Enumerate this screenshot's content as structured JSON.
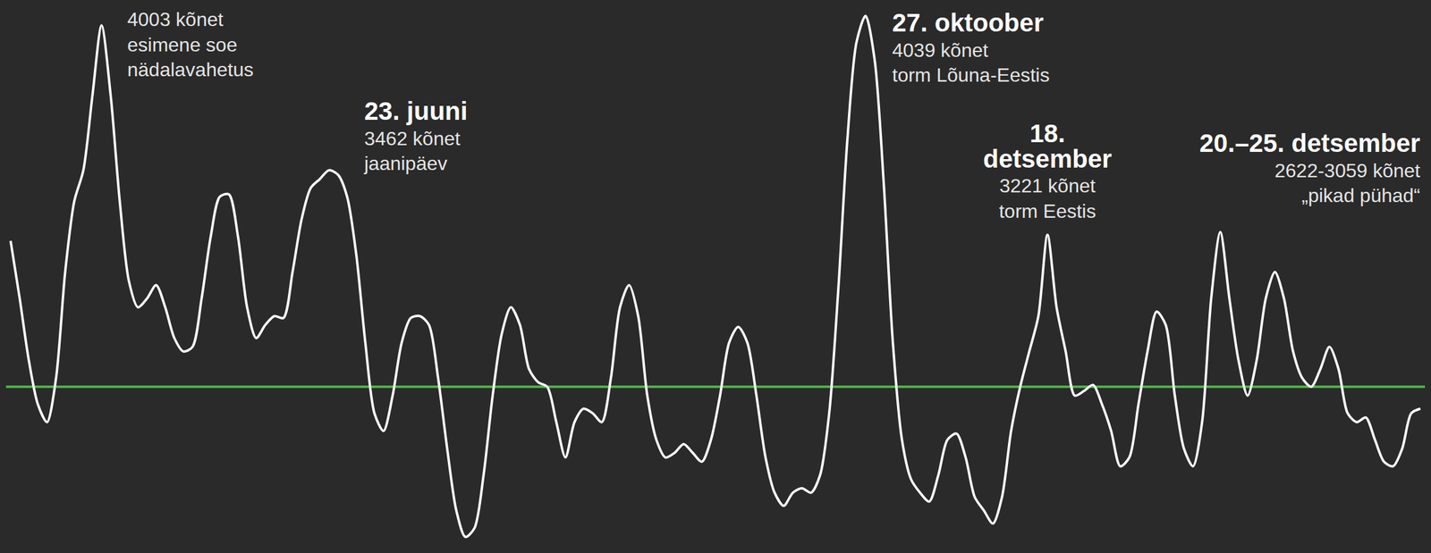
{
  "chart_data": {
    "type": "line",
    "categories": [
      null,
      null,
      null,
      null,
      null,
      null,
      null,
      null,
      null,
      null,
      null,
      null,
      null,
      null,
      null,
      null,
      null,
      null,
      null,
      null,
      null,
      null,
      null,
      null,
      null,
      null,
      null,
      null,
      null,
      null,
      null,
      null,
      null,
      null,
      null,
      null,
      null,
      null,
      null,
      null,
      null,
      null,
      null,
      null,
      null,
      null,
      null,
      null,
      null,
      null,
      null,
      null,
      null,
      null,
      null,
      null,
      null,
      null,
      null,
      null,
      null,
      null,
      null,
      null,
      null,
      null,
      null,
      null,
      null,
      null,
      null,
      null,
      null,
      null,
      null,
      null,
      null,
      null,
      null,
      null,
      null,
      null,
      null,
      null,
      null,
      null,
      null,
      null,
      null,
      null,
      null,
      null,
      null,
      null,
      null,
      null,
      null,
      null,
      null,
      null,
      null,
      null,
      null,
      null,
      null,
      null,
      null,
      null,
      null,
      null,
      null,
      null,
      null,
      null,
      null,
      null,
      null,
      null,
      null,
      null,
      null,
      null,
      null,
      null,
      null,
      null,
      null,
      null,
      null,
      null,
      null,
      null,
      null,
      null,
      null,
      null,
      null,
      null,
      null,
      null,
      null,
      null,
      null,
      null,
      null,
      null,
      null,
      null,
      null,
      null,
      null,
      null,
      null,
      null,
      null,
      null
    ],
    "values": [
      3198,
      2983,
      2752,
      2587,
      2521,
      2686,
      3082,
      3346,
      3462,
      3742,
      4003,
      3742,
      3346,
      3049,
      2950,
      2983,
      3033,
      2950,
      2835,
      2785,
      2802,
      2983,
      3214,
      3363,
      3372,
      3214,
      2950,
      2835,
      2884,
      2917,
      2910,
      3082,
      3280,
      3396,
      3429,
      3462,
      3445,
      3363,
      3148,
      2818,
      2554,
      2488,
      2620,
      2818,
      2910,
      2917,
      2884,
      2686,
      2422,
      2191,
      2092,
      2125,
      2323,
      2620,
      2851,
      2950,
      2884,
      2719,
      2670,
      2653,
      2521,
      2389,
      2521,
      2571,
      2554,
      2521,
      2686,
      2950,
      3033,
      2917,
      2620,
      2455,
      2389,
      2406,
      2439,
      2406,
      2373,
      2455,
      2620,
      2818,
      2877,
      2818,
      2620,
      2389,
      2257,
      2208,
      2257,
      2274,
      2257,
      2323,
      2554,
      3016,
      3577,
      3940,
      4039,
      3874,
      3412,
      2818,
      2455,
      2307,
      2257,
      2224,
      2323,
      2455,
      2478,
      2389,
      2241,
      2191,
      2142,
      2241,
      2488,
      2653,
      2785,
      2917,
      3221,
      2950,
      2785,
      2620,
      2637,
      2660,
      2587,
      2488,
      2356,
      2389,
      2587,
      2785,
      2934,
      2884,
      2620,
      2422,
      2356,
      2521,
      2983,
      3231,
      2983,
      2752,
      2620,
      2752,
      2983,
      3082,
      2983,
      2785,
      2686,
      2653,
      2719,
      2802,
      2719,
      2554,
      2521,
      2538,
      2455,
      2373,
      2356,
      2422,
      2554,
      2571
    ],
    "color": "#ffffff",
    "ylim": [
      2050,
      4080
    ],
    "grid": false,
    "tick_labels": false,
    "reference_line": {
      "value": 2653,
      "color": "#4cb848"
    },
    "annotations": [
      {
        "index": 10,
        "lines": [
          "4003 kõnet",
          "esimene soe",
          "nädalavahetus"
        ]
      },
      {
        "index": 35,
        "title": "23. juuni",
        "lines": [
          "3462 kõnet",
          "jaanipäev"
        ]
      },
      {
        "index": 94,
        "title": "27. oktoober",
        "lines": [
          "4039 kõnet",
          "torm Lõuna-Eestis"
        ]
      },
      {
        "index": 114,
        "title": "18. detsember",
        "lines": [
          "3221 kõnet",
          "torm Eestis"
        ]
      },
      {
        "title": "20.–25. detsember",
        "lines": [
          "2622-3059 kõnet",
          "„pikad pühad“"
        ]
      }
    ]
  }
}
